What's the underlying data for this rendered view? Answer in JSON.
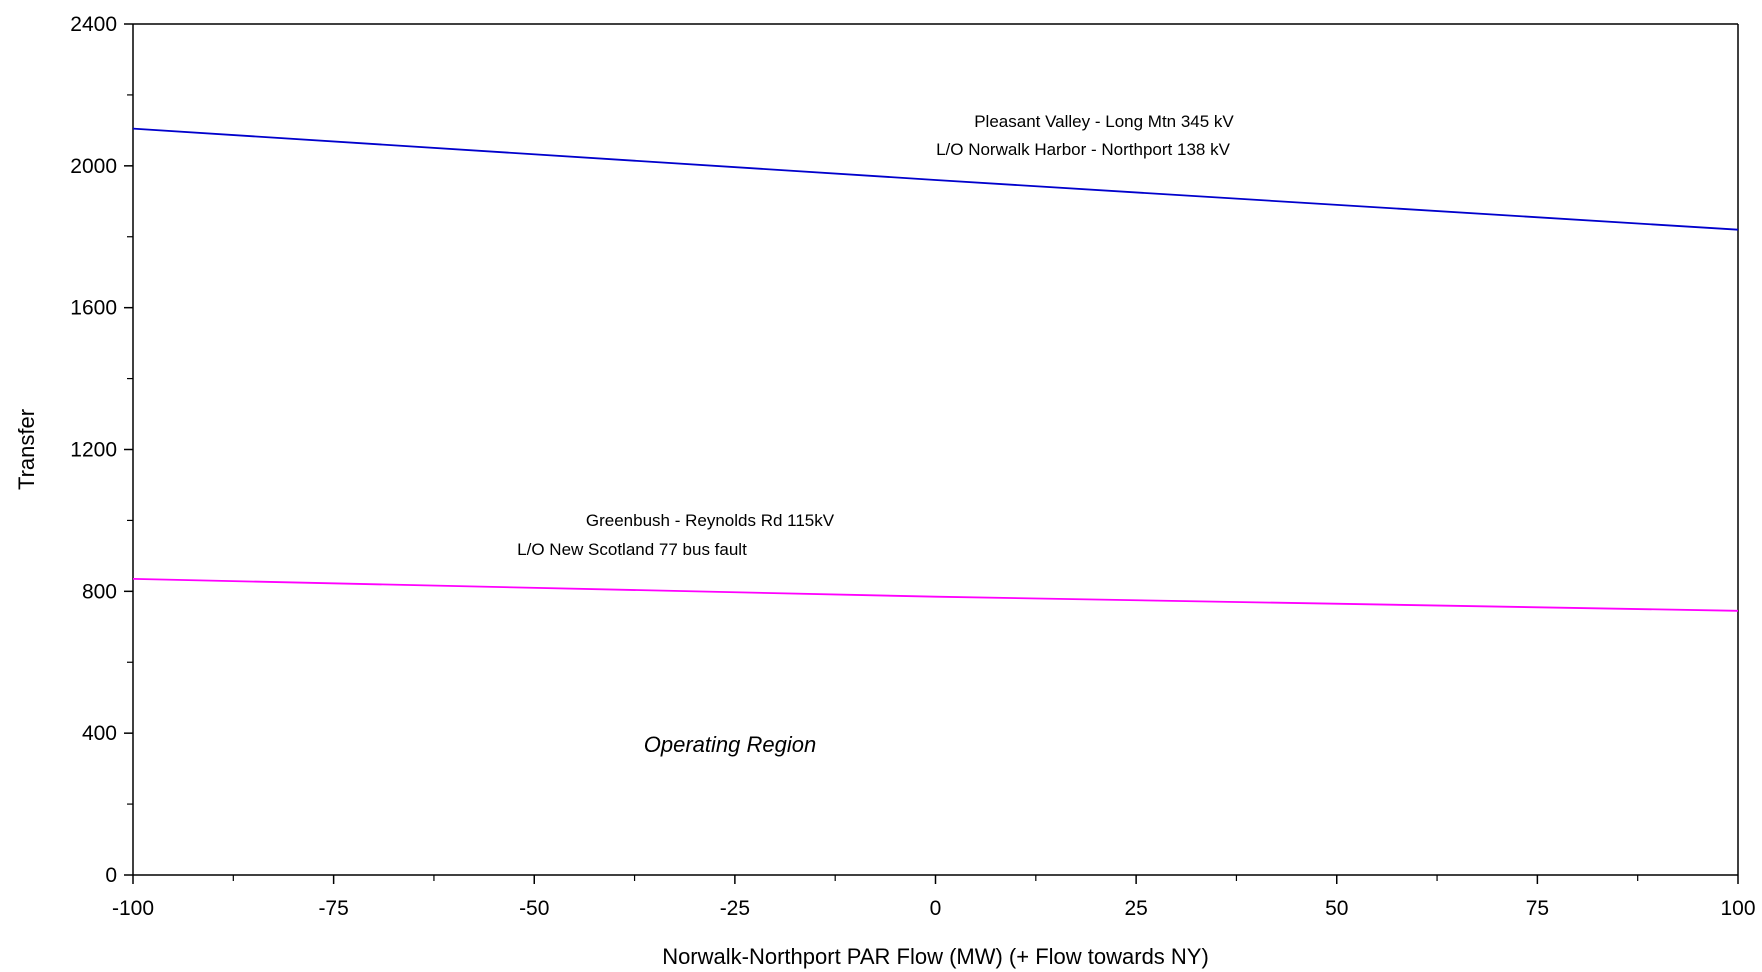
{
  "chart_data": {
    "type": "line",
    "title": "",
    "xlabel": "Norwalk-Northport PAR Flow (MW) (+ Flow towards NY)",
    "ylabel": "Transfer",
    "xlim": [
      -100,
      100
    ],
    "ylim": [
      0,
      2400
    ],
    "x_ticks": [
      -100,
      -75,
      -50,
      -25,
      0,
      25,
      50,
      75,
      100
    ],
    "y_ticks": [
      0,
      400,
      800,
      1200,
      1600,
      2000,
      2400
    ],
    "grid": false,
    "legend": "none",
    "series": [
      {
        "color": "#0000cc",
        "x": [
          -100,
          0,
          100
        ],
        "y": [
          2105,
          1960,
          1820
        ],
        "label_lines": [
          "Pleasant Valley - Long Mtn 345 kV",
          "L/O  Norwalk Harbor - Northport 138 kV"
        ]
      },
      {
        "color": "#ff00ff",
        "x": [
          -100,
          0,
          100
        ],
        "y": [
          835,
          785,
          745
        ],
        "label_lines": [
          "Greenbush - Reynolds Rd 115kV",
          "L/O   New Scotland 77 bus fault"
        ]
      }
    ],
    "annotations": [
      {
        "text": "Operating Region",
        "style": "italic"
      }
    ]
  }
}
